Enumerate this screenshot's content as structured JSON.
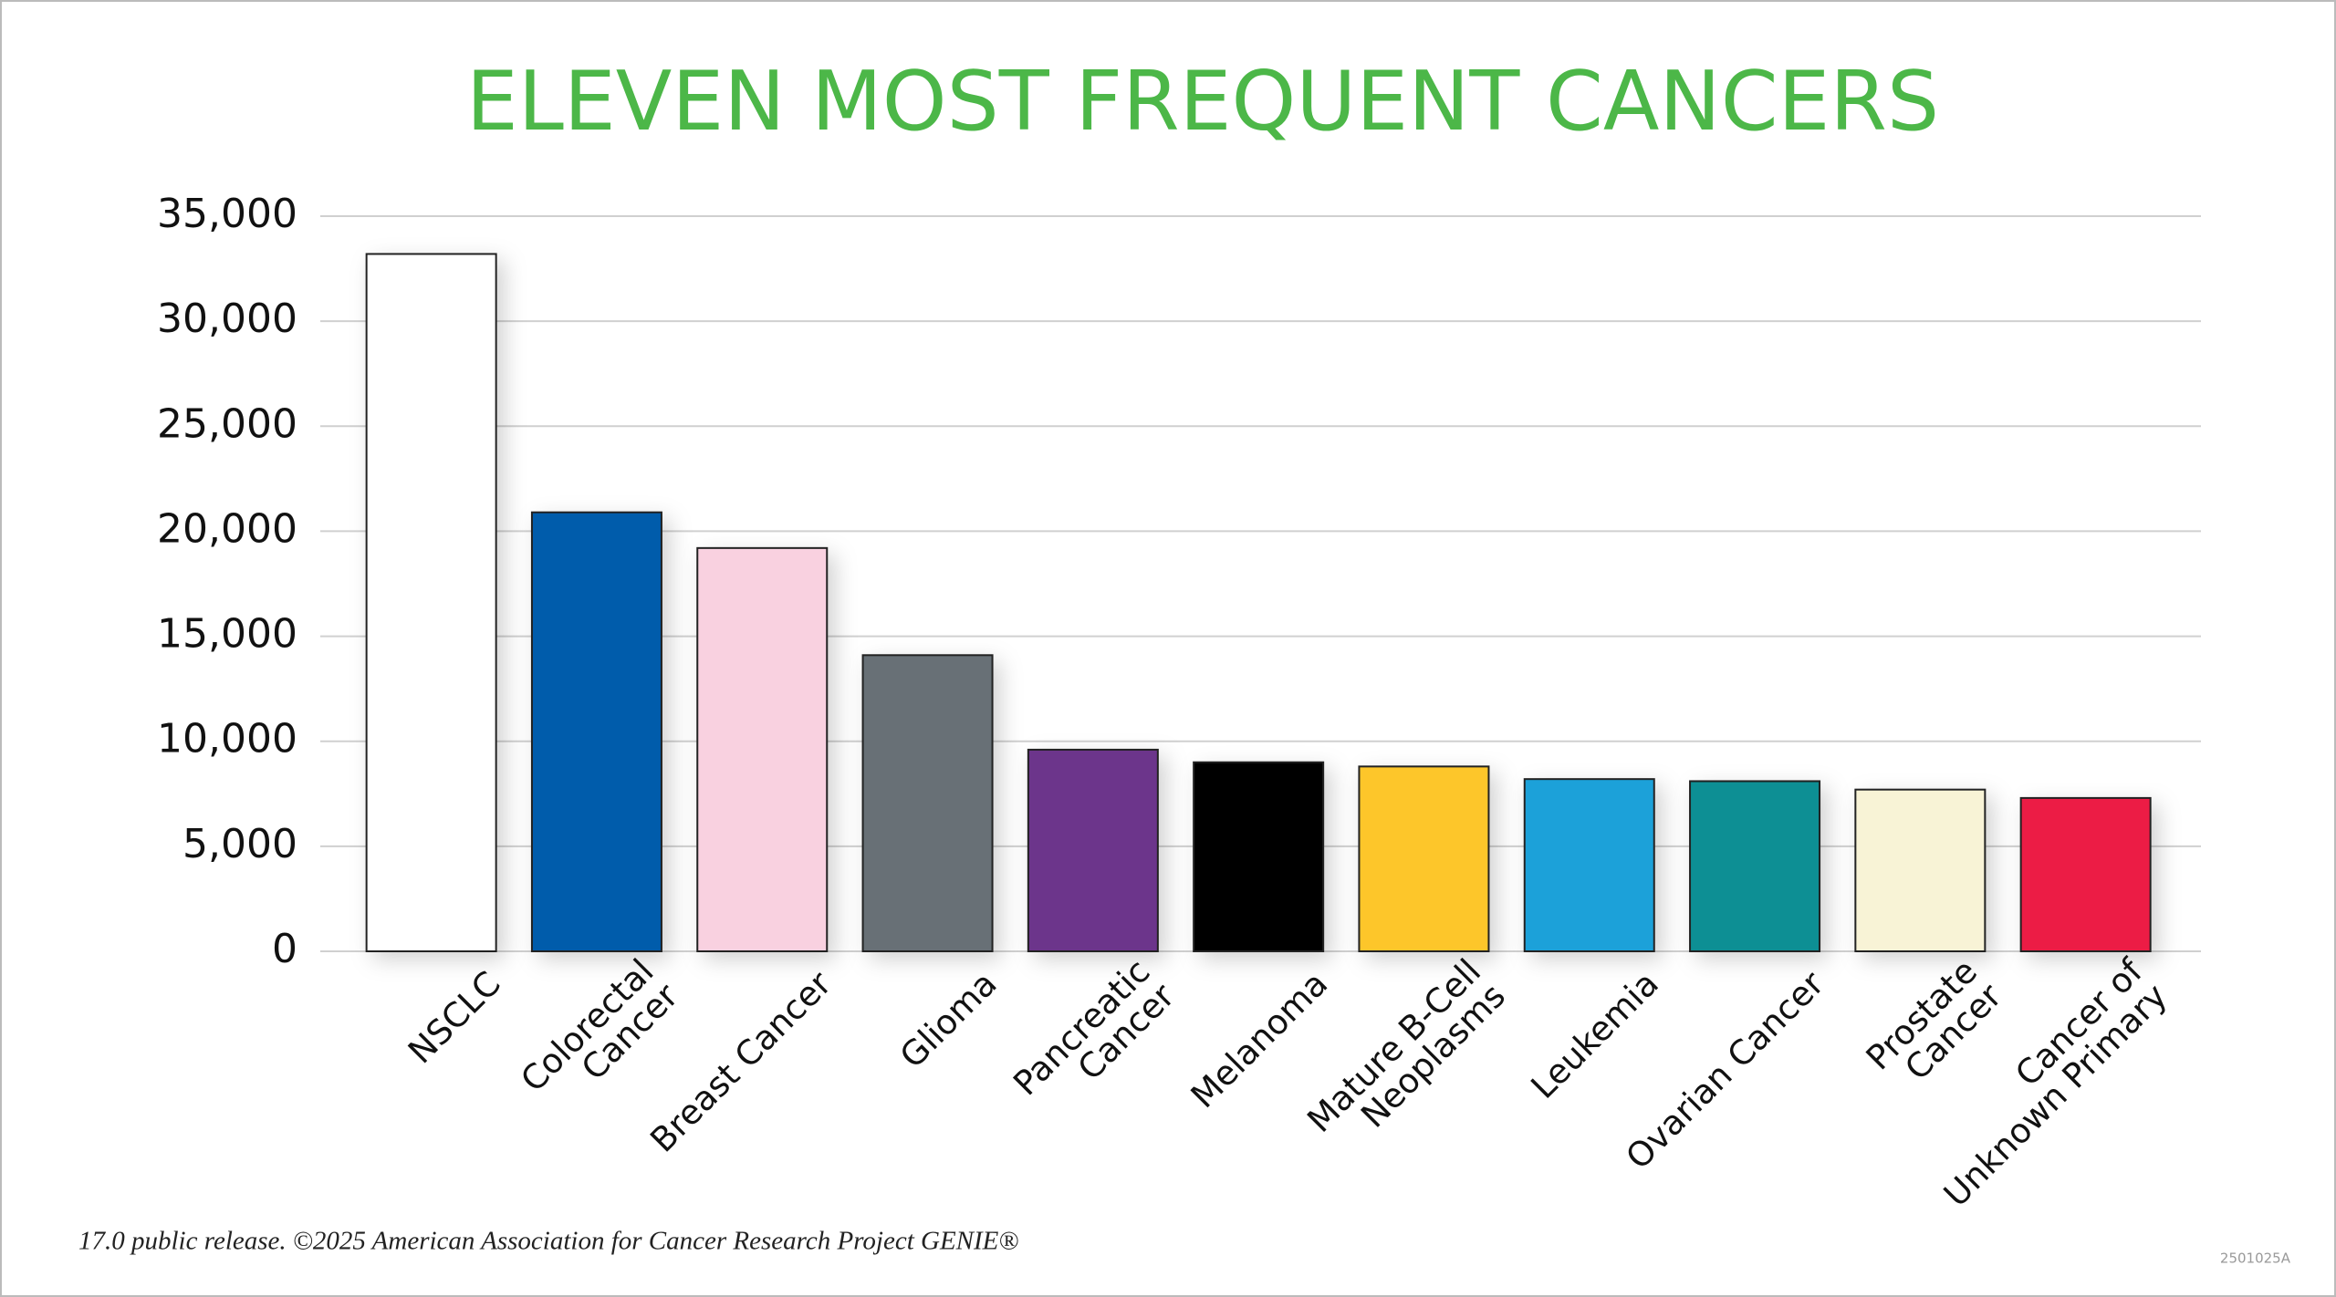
{
  "chart_data": {
    "type": "bar",
    "title": "ELEVEN MOST FREQUENT CANCERS",
    "categories": [
      "NSCLC",
      "Colorectal\nCancer",
      "Breast Cancer",
      "Glioma",
      "Pancreatic\nCancer",
      "Melanoma",
      "Mature B-Cell\nNeoplasms",
      "Leukemia",
      "Ovarian Cancer",
      "Prostate\nCancer",
      "Cancer of\nUnknown Primary"
    ],
    "values": [
      33200,
      20900,
      19200,
      14100,
      9600,
      9000,
      8800,
      8200,
      8100,
      7700,
      7300
    ],
    "colors": [
      "#ffffff",
      "#005bab",
      "#f9d1e0",
      "#686f76",
      "#6c368b",
      "#000000",
      "#fdc62b",
      "#1fa1d9",
      "#078f94",
      "#f8f3d6",
      "#ec1a45"
    ],
    "ylim": [
      0,
      35000
    ],
    "yticks": [
      {
        "value": 0,
        "label": "0"
      },
      {
        "value": 5000,
        "label": "5,000"
      },
      {
        "value": 10000,
        "label": "10,000"
      },
      {
        "value": 15000,
        "label": "15,000"
      },
      {
        "value": 20000,
        "label": "20,000"
      },
      {
        "value": 25000,
        "label": "25,000"
      },
      {
        "value": 30000,
        "label": "30,000"
      },
      {
        "value": 35000,
        "label": "35,000"
      }
    ],
    "grid": true,
    "footnote": "17.0 public release. ©2025 American Association for Cancer Research Project GENIE®",
    "code": "2501025A"
  }
}
